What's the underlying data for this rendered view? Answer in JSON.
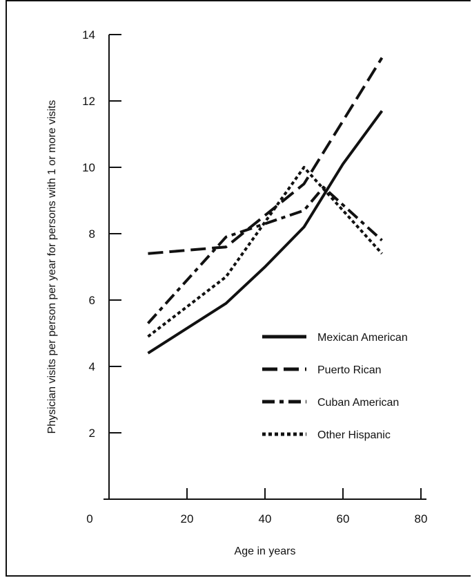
{
  "chart_data": {
    "type": "line",
    "title": "",
    "xlabel": "Age in years",
    "ylabel": "Physician visits per person per year for persons with 1 or more visits",
    "xlim": [
      0,
      80
    ],
    "ylim": [
      0,
      14
    ],
    "x_ticks": [
      "0",
      "20",
      "40",
      "60",
      "80"
    ],
    "y_ticks": [
      "2",
      "4",
      "6",
      "8",
      "10",
      "12",
      "14"
    ],
    "grid": false,
    "legend_position": "right-middle",
    "series": [
      {
        "name": "Mexican American",
        "style": "solid",
        "color": "#111111",
        "points": [
          [
            10,
            4.4
          ],
          [
            30,
            5.9
          ],
          [
            40,
            7.0
          ],
          [
            50,
            8.2
          ],
          [
            60,
            10.1
          ],
          [
            70,
            11.7
          ]
        ]
      },
      {
        "name": "Puerto Rican",
        "style": "dashed",
        "color": "#111111",
        "points": [
          [
            10,
            7.4
          ],
          [
            30,
            7.6
          ],
          [
            50,
            9.5
          ],
          [
            70,
            13.3
          ]
        ]
      },
      {
        "name": "Cuban American",
        "style": "dashdot",
        "color": "#111111",
        "points": [
          [
            10,
            5.3
          ],
          [
            30,
            7.9
          ],
          [
            50,
            8.7
          ],
          [
            55,
            9.4
          ],
          [
            70,
            7.8
          ]
        ]
      },
      {
        "name": "Other Hispanic",
        "style": "dotted",
        "color": "#111111",
        "points": [
          [
            10,
            4.9
          ],
          [
            30,
            6.7
          ],
          [
            50,
            10.0
          ],
          [
            70,
            7.4
          ]
        ]
      }
    ]
  }
}
